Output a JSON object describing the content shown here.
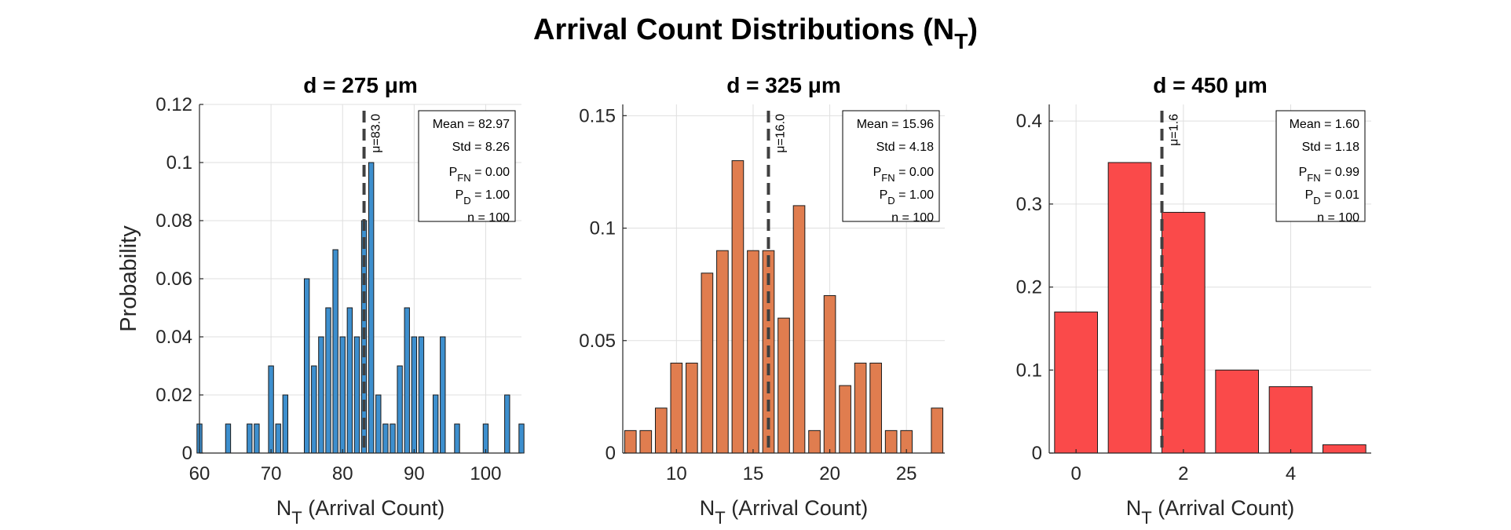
{
  "figure": {
    "title_main": "Arrival Count Distributions (N",
    "title_sub": "T",
    "title_end": ")"
  },
  "chart_data": [
    {
      "type": "bar",
      "title": "d = 275 μm",
      "color": "#3d8fce",
      "xlabel_main": "N",
      "xlabel_sub": "T",
      "xlabel_rest": " (Arrival Count)",
      "ylabel": "Probability",
      "xlim": [
        60,
        105
      ],
      "ylim": [
        0,
        0.12
      ],
      "bar_width": 0.7,
      "xticks": [
        60,
        70,
        80,
        90,
        100
      ],
      "yticks": [
        0,
        0.02,
        0.04,
        0.06,
        0.08,
        0.1,
        0.12
      ],
      "x": [
        60,
        64,
        67,
        68,
        70,
        71,
        72,
        75,
        76,
        77,
        78,
        79,
        80,
        81,
        82,
        83,
        84,
        85,
        86,
        87,
        88,
        89,
        90,
        91,
        93,
        94,
        96,
        100,
        103,
        105
      ],
      "values": [
        0.01,
        0.01,
        0.01,
        0.01,
        0.03,
        0.01,
        0.02,
        0.06,
        0.03,
        0.04,
        0.05,
        0.07,
        0.04,
        0.05,
        0.04,
        0.08,
        0.1,
        0.02,
        0.01,
        0.01,
        0.03,
        0.05,
        0.04,
        0.04,
        0.02,
        0.04,
        0.01,
        0.01,
        0.02,
        0.01
      ],
      "mean_value": 83.0,
      "mean_label": "μ=83.0",
      "stats": [
        {
          "label": "Mean",
          "sub": "",
          "value": "82.97"
        },
        {
          "label": "Std",
          "sub": "",
          "value": "8.26"
        },
        {
          "label": "P",
          "sub": "FN",
          "value": "0.00"
        },
        {
          "label": "P",
          "sub": "D",
          "value": "1.00"
        },
        {
          "label": "n",
          "sub": "",
          "value": "100"
        }
      ]
    },
    {
      "type": "bar",
      "title": "d = 325 μm",
      "color": "#e07d4f",
      "xlabel_main": "N",
      "xlabel_sub": "T",
      "xlabel_rest": " (Arrival Count)",
      "ylabel": "",
      "xlim": [
        6.5,
        27.5
      ],
      "ylim": [
        0,
        0.155
      ],
      "bar_width": 0.75,
      "xticks": [
        10,
        15,
        20,
        25
      ],
      "yticks": [
        0,
        0.05,
        0.1,
        0.15
      ],
      "x": [
        7,
        8,
        9,
        10,
        11,
        12,
        13,
        14,
        15,
        16,
        17,
        18,
        19,
        20,
        21,
        22,
        23,
        24,
        25,
        27
      ],
      "values": [
        0.01,
        0.01,
        0.02,
        0.04,
        0.04,
        0.08,
        0.09,
        0.13,
        0.09,
        0.09,
        0.06,
        0.11,
        0.01,
        0.07,
        0.03,
        0.04,
        0.04,
        0.01,
        0.01,
        0.02
      ],
      "mean_value": 16.0,
      "mean_label": "μ=16.0",
      "stats": [
        {
          "label": "Mean",
          "sub": "",
          "value": "15.96"
        },
        {
          "label": "Std",
          "sub": "",
          "value": "4.18"
        },
        {
          "label": "P",
          "sub": "FN",
          "value": "0.00"
        },
        {
          "label": "P",
          "sub": "D",
          "value": "1.00"
        },
        {
          "label": "n",
          "sub": "",
          "value": "100"
        }
      ]
    },
    {
      "type": "bar",
      "title": "d = 450 μm",
      "color": "#fa4a4a",
      "xlabel_main": "N",
      "xlabel_sub": "T",
      "xlabel_rest": " (Arrival Count)",
      "ylabel": "",
      "xlim": [
        -0.5,
        5.5
      ],
      "ylim": [
        0,
        0.42
      ],
      "bar_width": 0.8,
      "xticks": [
        0,
        2,
        4
      ],
      "yticks": [
        0,
        0.1,
        0.2,
        0.3,
        0.4
      ],
      "x": [
        0,
        1,
        2,
        3,
        4,
        5
      ],
      "values": [
        0.17,
        0.35,
        0.29,
        0.1,
        0.08,
        0.01
      ],
      "mean_value": 1.6,
      "mean_label": "μ=1.6",
      "stats": [
        {
          "label": "Mean",
          "sub": "",
          "value": "1.60"
        },
        {
          "label": "Std",
          "sub": "",
          "value": "1.18"
        },
        {
          "label": "P",
          "sub": "FN",
          "value": "0.99"
        },
        {
          "label": "P",
          "sub": "D",
          "value": "0.01"
        },
        {
          "label": "n",
          "sub": "",
          "value": "100"
        }
      ]
    }
  ]
}
